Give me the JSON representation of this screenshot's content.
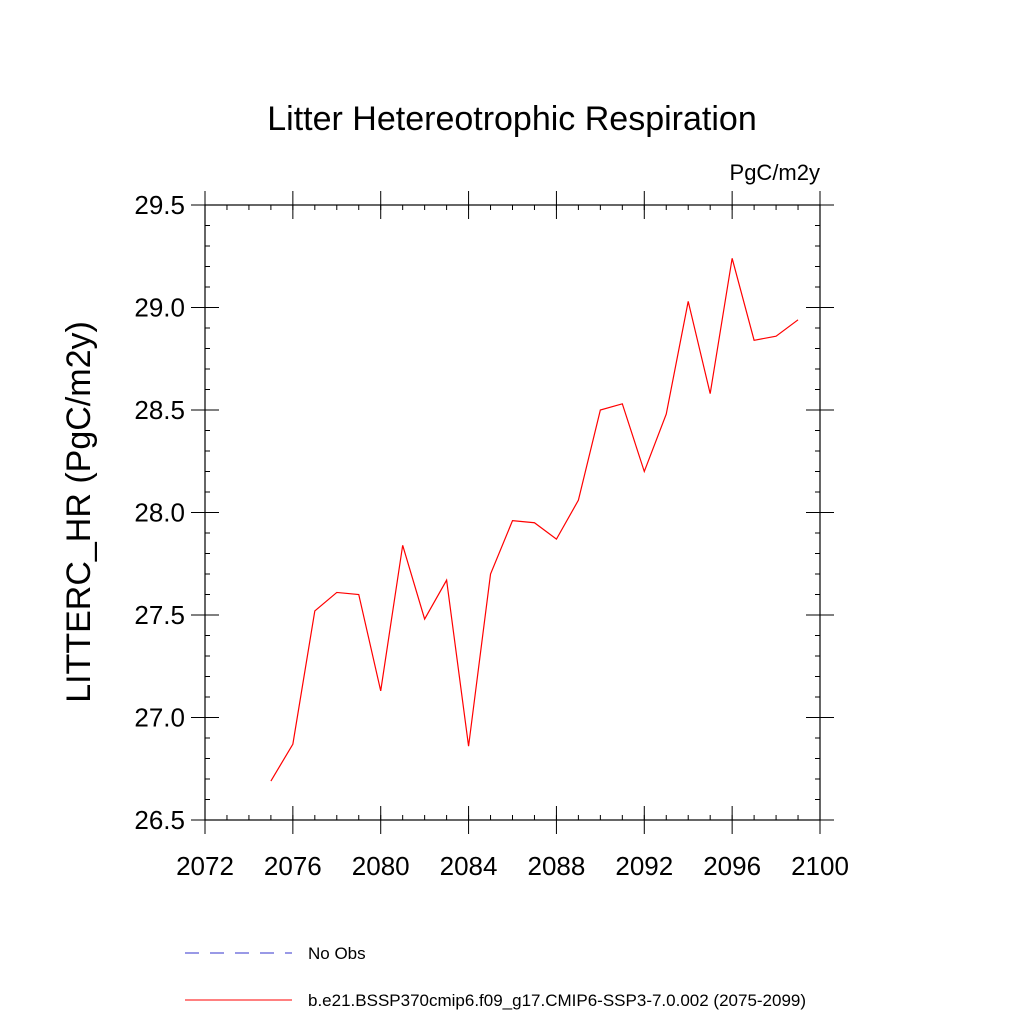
{
  "chart_data": {
    "type": "line",
    "title": "Litter Hetereotrophic Respiration",
    "units_label": "PgC/m2y",
    "xlabel": "",
    "ylabel": "LITTERC_HR  (PgC/m2y)",
    "xlim": [
      2072,
      2100
    ],
    "ylim": [
      26.5,
      29.5
    ],
    "x_ticks": [
      2072,
      2076,
      2080,
      2084,
      2088,
      2092,
      2096,
      2100
    ],
    "x_tick_labels": [
      "2072",
      "2076",
      "2080",
      "2084",
      "2088",
      "2092",
      "2096",
      "2100"
    ],
    "y_ticks": [
      26.5,
      27.0,
      27.5,
      28.0,
      28.5,
      29.0,
      29.5
    ],
    "y_tick_labels": [
      "26.5",
      "27.0",
      "27.5",
      "28.0",
      "28.5",
      "29.0",
      "29.5"
    ],
    "x_minor_step": 1,
    "y_minor_step": 0.1,
    "grid": false,
    "series": [
      {
        "name": "b.e21.BSSP370cmip6.f09_g17.CMIP6-SSP3-7.0.002 (2075-2099)",
        "color": "#ff0000",
        "style": "solid",
        "x": [
          2075,
          2076,
          2077,
          2078,
          2079,
          2080,
          2081,
          2082,
          2083,
          2084,
          2085,
          2086,
          2087,
          2088,
          2089,
          2090,
          2091,
          2092,
          2093,
          2094,
          2095,
          2096,
          2097,
          2098,
          2099
        ],
        "values": [
          26.69,
          26.87,
          27.52,
          27.61,
          27.6,
          27.13,
          27.84,
          27.48,
          27.67,
          26.86,
          27.7,
          27.96,
          27.95,
          27.87,
          28.06,
          28.5,
          28.53,
          28.2,
          28.48,
          29.03,
          28.58,
          29.24,
          28.84,
          28.86,
          28.94
        ]
      }
    ],
    "legend": [
      {
        "label": "No Obs",
        "color": "#3333cc",
        "style": "dashed"
      },
      {
        "label": "b.e21.BSSP370cmip6.f09_g17.CMIP6-SSP3-7.0.002 (2075-2099)",
        "color": "#ff0000",
        "style": "solid"
      }
    ],
    "legend_position": "bottom"
  }
}
